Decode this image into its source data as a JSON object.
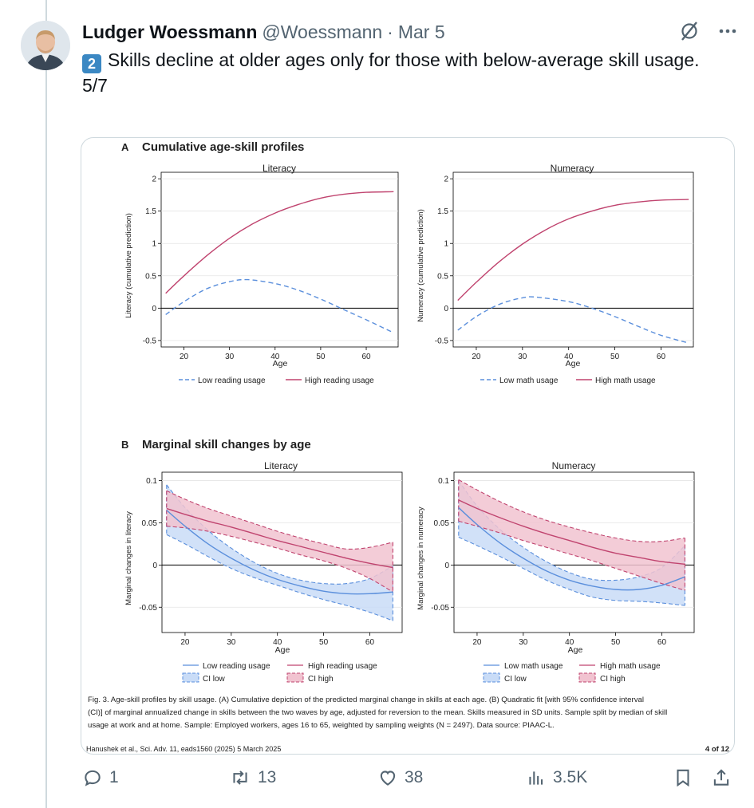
{
  "post": {
    "author_name": "Ludger Woessmann",
    "handle": "@Woessmann",
    "separator": "·",
    "date": "Mar 5",
    "keycap": "2",
    "text_line": "Skills decline at older ages only for those with below-average skill usage.",
    "text_count": "5/7"
  },
  "actions": {
    "replies": "1",
    "reposts": "13",
    "likes": "38",
    "views": "3.5K"
  },
  "figure": {
    "panel_a_letter": "A",
    "panel_a_title": "Cumulative age-skill profiles",
    "panel_b_letter": "B",
    "panel_b_title": "Marginal skill changes by age",
    "literacy_title": "Literacy",
    "numeracy_title": "Numeracy",
    "age_label": "Age",
    "ylab_a_lit": "Literacy (cumulative prediction)",
    "ylab_a_num": "Numeracy (cumulative prediction)",
    "ylab_b_lit": "Marginal changes in literacy",
    "ylab_b_num": "Marginal changes in numeracy",
    "leg_low_reading": "Low reading usage",
    "leg_high_reading": "High reading usage",
    "leg_low_math": "Low math usage",
    "leg_high_math": "High math usage",
    "leg_ci_low": "CI low",
    "leg_ci_high": "CI high",
    "caption_1": "Fig. 3. Age-skill profiles by skill usage. (A) Cumulative depiction of the predicted marginal change in skills at each age. (B) Quadratic fit [with 95% confidence interval",
    "caption_2": "(CI)] of marginal annualized change in skills between the two waves by age, adjusted for reversion to the mean. Skills measured in SD units. Sample split by median of skill",
    "caption_3": "usage at work and at home. Sample: Employed workers, ages 16 to 65, weighted by sampling weights (N = 2497). Data source: PIAAC-L.",
    "footer_left": "Hanushek et al., Sci. Adv. 11, eads1560 (2025)     5 March 2025",
    "footer_right": "4 of 12"
  },
  "colors": {
    "low": "#5b8fdc",
    "high": "#c0446f",
    "ci_low_fill": "#c9dcf7",
    "ci_high_fill": "#f1c3d0"
  },
  "chart_data": [
    {
      "type": "line",
      "title": "Literacy",
      "xlabel": "Age",
      "ylabel": "Literacy (cumulative prediction)",
      "xlim": [
        15,
        67
      ],
      "ylim": [
        -0.6,
        2.1
      ],
      "series": [
        {
          "name": "Low reading usage",
          "x": [
            16,
            20,
            25,
            30,
            34,
            40,
            45,
            50,
            55,
            60,
            66
          ],
          "y": [
            -0.1,
            0.1,
            0.3,
            0.41,
            0.44,
            0.38,
            0.28,
            0.14,
            -0.02,
            -0.18,
            -0.38
          ]
        },
        {
          "name": "High reading usage",
          "x": [
            16,
            20,
            25,
            30,
            35,
            40,
            45,
            50,
            55,
            60,
            66
          ],
          "y": [
            0.23,
            0.5,
            0.81,
            1.08,
            1.3,
            1.47,
            1.6,
            1.7,
            1.76,
            1.79,
            1.8
          ]
        }
      ]
    },
    {
      "type": "line",
      "title": "Numeracy",
      "xlabel": "Age",
      "ylabel": "Numeracy (cumulative prediction)",
      "xlim": [
        15,
        67
      ],
      "ylim": [
        -0.6,
        2.1
      ],
      "series": [
        {
          "name": "Low math usage",
          "x": [
            16,
            20,
            25,
            30,
            33,
            40,
            45,
            50,
            55,
            60,
            66
          ],
          "y": [
            -0.34,
            -0.13,
            0.06,
            0.16,
            0.17,
            0.1,
            0.0,
            -0.13,
            -0.28,
            -0.42,
            -0.54
          ]
        },
        {
          "name": "High math usage",
          "x": [
            16,
            20,
            25,
            30,
            35,
            40,
            45,
            50,
            55,
            60,
            66
          ],
          "y": [
            0.12,
            0.4,
            0.72,
            0.99,
            1.21,
            1.38,
            1.5,
            1.59,
            1.64,
            1.67,
            1.68
          ]
        }
      ]
    },
    {
      "type": "line",
      "title": "Literacy",
      "xlabel": "Age",
      "ylabel": "Marginal changes in literacy",
      "xlim": [
        15,
        67
      ],
      "ylim": [
        -0.08,
        0.11
      ],
      "series": [
        {
          "name": "Low reading usage",
          "x": [
            16,
            20,
            25,
            30,
            35,
            40,
            45,
            50,
            55,
            60,
            65
          ],
          "y": [
            0.065,
            0.046,
            0.025,
            0.008,
            -0.006,
            -0.017,
            -0.025,
            -0.031,
            -0.034,
            -0.034,
            -0.032
          ]
        },
        {
          "name": "High reading usage",
          "x": [
            16,
            20,
            25,
            30,
            35,
            40,
            45,
            50,
            55,
            60,
            65
          ],
          "y": [
            0.067,
            0.06,
            0.052,
            0.045,
            0.037,
            0.029,
            0.022,
            0.015,
            0.008,
            0.002,
            -0.003
          ]
        },
        {
          "name": "CI low",
          "x": [
            16,
            20,
            25,
            30,
            35,
            40,
            45,
            50,
            55,
            60,
            65
          ],
          "upper": [
            0.095,
            0.068,
            0.041,
            0.02,
            0.003,
            -0.01,
            -0.018,
            -0.022,
            -0.022,
            -0.016,
            -0.001
          ],
          "lower": [
            0.036,
            0.025,
            0.01,
            -0.004,
            -0.015,
            -0.024,
            -0.033,
            -0.041,
            -0.048,
            -0.056,
            -0.066
          ]
        },
        {
          "name": "CI high",
          "x": [
            16,
            20,
            25,
            30,
            35,
            40,
            45,
            50,
            55,
            60,
            65
          ],
          "upper": [
            0.088,
            0.078,
            0.067,
            0.058,
            0.049,
            0.04,
            0.032,
            0.025,
            0.019,
            0.021,
            0.027
          ],
          "lower": [
            0.046,
            0.044,
            0.04,
            0.034,
            0.027,
            0.02,
            0.012,
            0.005,
            -0.004,
            -0.016,
            -0.032
          ]
        }
      ]
    },
    {
      "type": "line",
      "title": "Numeracy",
      "xlabel": "Age",
      "ylabel": "Marginal changes in numeracy",
      "xlim": [
        15,
        67
      ],
      "ylim": [
        -0.08,
        0.11
      ],
      "series": [
        {
          "name": "Low math usage",
          "x": [
            16,
            20,
            25,
            30,
            35,
            40,
            45,
            50,
            55,
            60,
            65
          ],
          "y": [
            0.068,
            0.048,
            0.026,
            0.008,
            -0.007,
            -0.018,
            -0.025,
            -0.029,
            -0.029,
            -0.024,
            -0.014
          ]
        },
        {
          "name": "High math usage",
          "x": [
            16,
            20,
            25,
            30,
            35,
            40,
            45,
            50,
            55,
            60,
            65
          ],
          "y": [
            0.077,
            0.067,
            0.056,
            0.046,
            0.037,
            0.029,
            0.021,
            0.014,
            0.009,
            0.004,
            0.001
          ]
        },
        {
          "name": "CI low",
          "x": [
            16,
            20,
            25,
            30,
            35,
            40,
            45,
            50,
            55,
            60,
            65
          ],
          "upper": [
            0.1,
            0.07,
            0.042,
            0.021,
            0.004,
            -0.009,
            -0.017,
            -0.018,
            -0.014,
            -0.003,
            0.023
          ],
          "lower": [
            0.033,
            0.023,
            0.01,
            -0.004,
            -0.018,
            -0.029,
            -0.038,
            -0.042,
            -0.043,
            -0.045,
            -0.048
          ]
        },
        {
          "name": "CI high",
          "x": [
            16,
            20,
            25,
            30,
            35,
            40,
            45,
            50,
            55,
            60,
            65
          ],
          "upper": [
            0.101,
            0.089,
            0.075,
            0.063,
            0.053,
            0.045,
            0.038,
            0.032,
            0.028,
            0.028,
            0.032
          ],
          "lower": [
            0.052,
            0.046,
            0.038,
            0.029,
            0.021,
            0.013,
            0.005,
            -0.004,
            -0.013,
            -0.022,
            -0.03
          ]
        }
      ]
    }
  ]
}
